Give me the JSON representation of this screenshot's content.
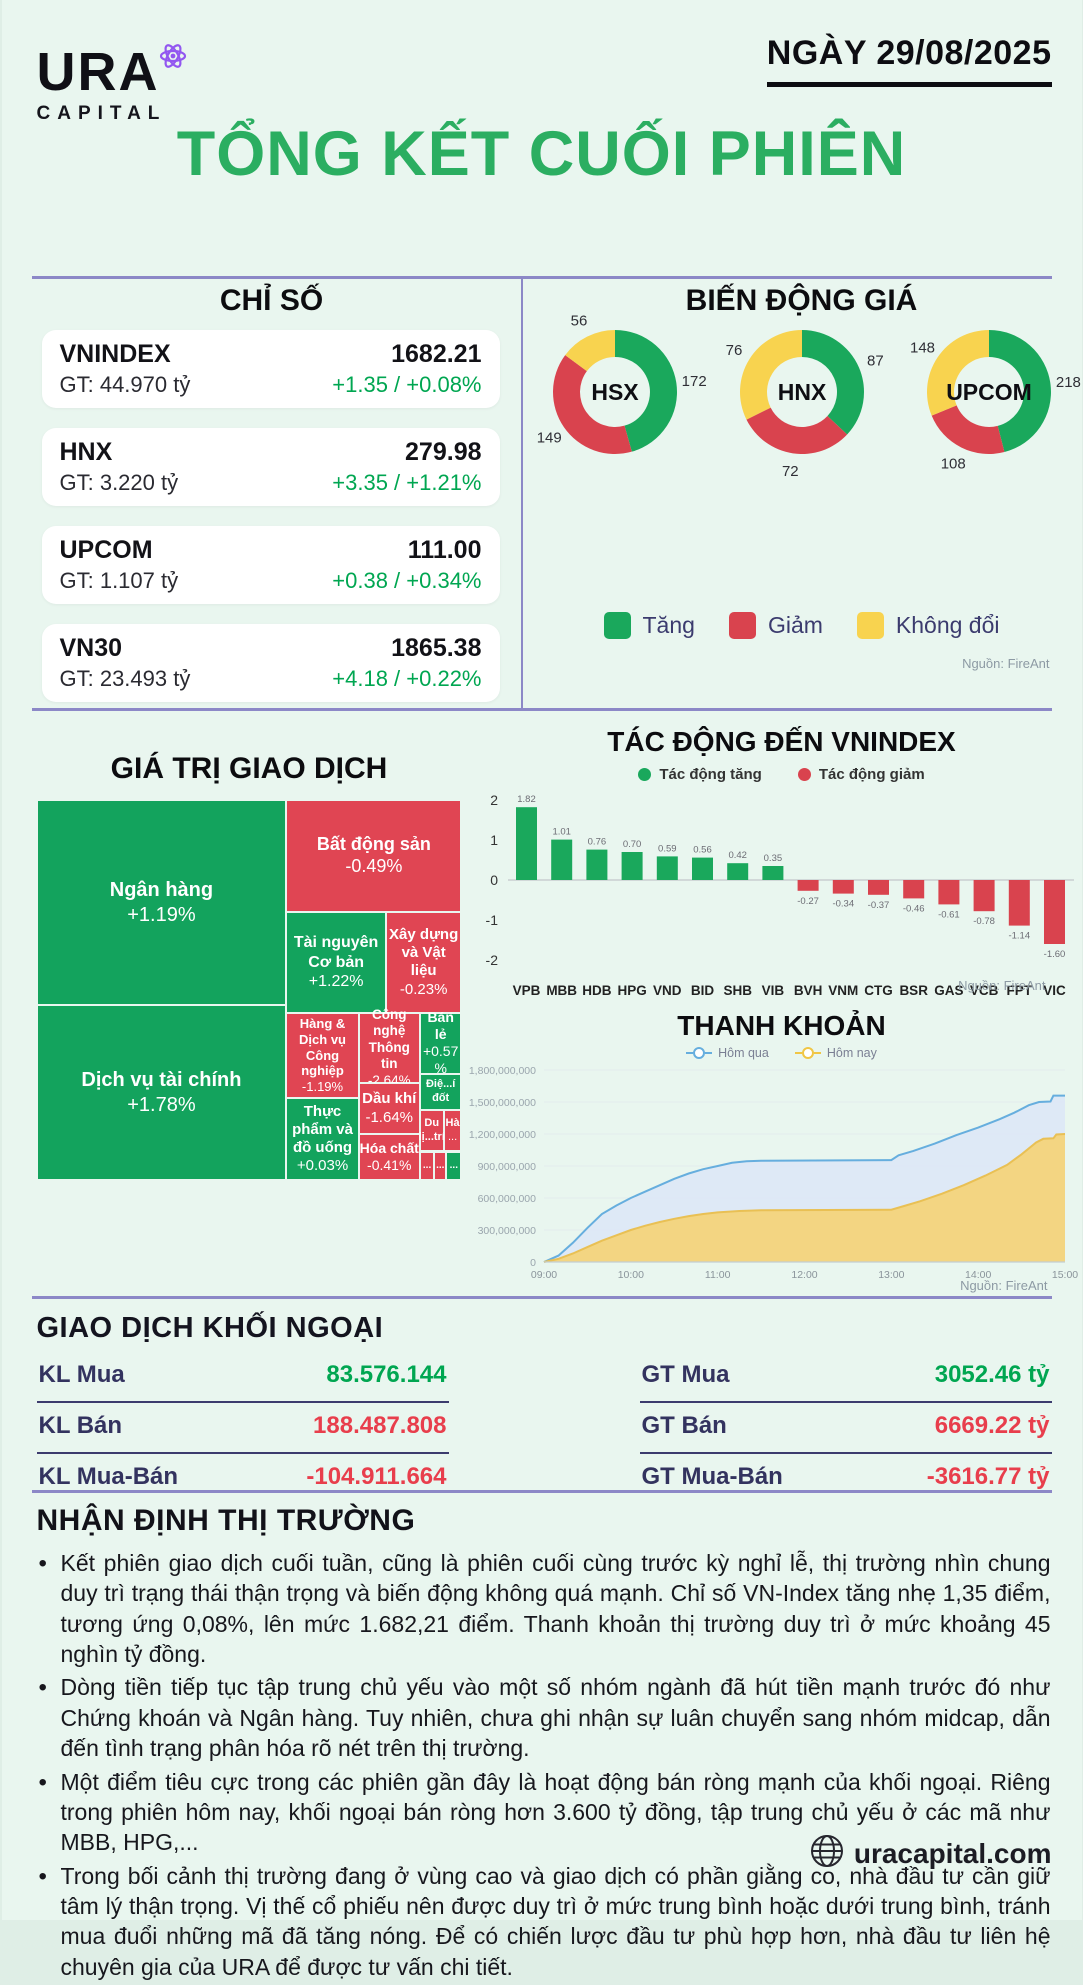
{
  "header": {
    "brand": "URA",
    "brand_sub": "CAPITAL",
    "date": "NGÀY 29/08/2025"
  },
  "main_title": "TỔNG KẾT CUỐI PHIÊN",
  "colors": {
    "up_text": "#00a651",
    "down_text": "#e83e4c",
    "green_fill": "#1aa85c",
    "red_fill": "#d9434e",
    "yellow_fill": "#f8d34f",
    "navy": "#3b3b6e",
    "purple_line": "#8c88c7",
    "blue_line": "#66aede",
    "blue_fill": "#dde8f6",
    "yellow_area": "#f3d47b",
    "background": "#e9f6ef",
    "title_green": "#2bae61"
  },
  "indices": {
    "section_title": "CHỈ SỐ",
    "cards": [
      {
        "name": "VNINDEX",
        "gt": "GT: 44.970 tỷ",
        "value": "1682.21",
        "change": "+1.35 / +0.08%"
      },
      {
        "name": "HNX",
        "gt": "GT: 3.220 tỷ",
        "value": "279.98",
        "change": "+3.35 / +1.21%"
      },
      {
        "name": "UPCOM",
        "gt": "GT: 1.107 tỷ",
        "value": "111.00",
        "change": "+0.38 / +0.34%"
      },
      {
        "name": "VN30",
        "gt": "GT: 23.493 tỷ",
        "value": "1865.38",
        "change": "+4.18 / +0.22%"
      }
    ]
  },
  "price_movement": {
    "section_title": "BIẾN ĐỘNG GIÁ",
    "legend": [
      {
        "label": "Tăng",
        "color": "#1aa85c"
      },
      {
        "label": "Giảm",
        "color": "#d9434e"
      },
      {
        "label": "Không đổi",
        "color": "#f8d34f"
      }
    ],
    "source": "Nguồn: FireAnt"
  },
  "trade_value": {
    "section_title": "GIÁ TRỊ GIAO DỊCH"
  },
  "impact": {
    "section_title": "TÁC ĐỘNG ĐẾN VNINDEX",
    "legend": [
      {
        "label": "Tác động tăng",
        "color": "#1aa85c"
      },
      {
        "label": "Tác động giảm",
        "color": "#d9434e"
      }
    ],
    "source": "Nguồn: FireAnt"
  },
  "liquidity": {
    "section_title": "THANH KHOẢN",
    "legend": [
      {
        "label": "Hôm qua",
        "color": "#66aede"
      },
      {
        "label": "Hôm nay",
        "color": "#f0c645"
      }
    ],
    "source": "Nguồn: FireAnt"
  },
  "foreign": {
    "section_title": "GIAO DỊCH KHỐI NGOẠI",
    "left_rows": [
      {
        "label": "KL Mua",
        "value": "83.576.144",
        "dir": "up"
      },
      {
        "label": "KL Bán",
        "value": "188.487.808",
        "dir": "down"
      },
      {
        "label": "KL Mua-Bán",
        "value": "-104.911.664",
        "dir": "down"
      }
    ],
    "right_rows": [
      {
        "label": "GT Mua",
        "value": "3052.46 tỷ",
        "dir": "up"
      },
      {
        "label": "GT Bán",
        "value": "6669.22 tỷ",
        "dir": "down"
      },
      {
        "label": "GT Mua-Bán",
        "value": "-3616.77 tỷ",
        "dir": "down"
      }
    ]
  },
  "commentary": {
    "section_title": "NHẬN ĐỊNH THỊ TRƯỜNG",
    "bullets": [
      "Kết phiên giao dịch cuối tuần, cũng là phiên cuối cùng trước kỳ nghỉ lễ, thị trường nhìn chung duy trì trạng thái thận trọng và biến động không quá mạnh. Chỉ số VN-Index tăng nhẹ 1,35 điểm, tương ứng 0,08%, lên mức 1.682,21 điểm. Thanh khoản thị trường duy trì ở mức khoảng 45 nghìn tỷ đồng.",
      "Dòng tiền tiếp tục tập trung chủ yếu vào một số nhóm ngành đã hút tiền mạnh trước đó như Chứng khoán và Ngân hàng. Tuy nhiên, chưa ghi nhận sự luân chuyển sang nhóm midcap, dẫn đến tình trạng phân hóa rõ nét trên thị trường.",
      "Một điểm tiêu cực trong các phiên gần đây là hoạt động bán ròng mạnh của khối ngoại. Riêng trong phiên hôm nay, khối ngoại bán ròng hơn 3.600 tỷ đồng, tập trung chủ yếu ở các mã như MBB, HPG,...",
      "Trong bối cảnh thị trường đang ở vùng cao và giao dịch có phần giằng co, nhà đầu tư cần giữ tâm lý thận trọng. Vị thế cổ phiếu nên được duy trì ở mức trung bình hoặc dưới trung bình, tránh mua đuổi những mã đã tăng nóng. Để có chiến lược đầu tư phù hợp hơn, nhà đầu tư liên hệ chuyên gia của URA để được tư vấn chi tiết."
    ]
  },
  "footer": {
    "site": "uracapital.com"
  },
  "chart_data": [
    {
      "type": "pie",
      "name": "HSX",
      "labels": [
        "Tăng",
        "Giảm",
        "Không đổi"
      ],
      "values": [
        172,
        149,
        56
      ],
      "colors": [
        "#1aa85c",
        "#d9434e",
        "#f8d34f"
      ],
      "hole": 0.56
    },
    {
      "type": "pie",
      "name": "HNX",
      "labels": [
        "Tăng",
        "Giảm",
        "Không đổi"
      ],
      "values": [
        87,
        72,
        76
      ],
      "colors": [
        "#1aa85c",
        "#d9434e",
        "#f8d34f"
      ],
      "hole": 0.56
    },
    {
      "type": "pie",
      "name": "UPCOM",
      "labels": [
        "Tăng",
        "Giảm",
        "Không đổi"
      ],
      "values": [
        218,
        108,
        148
      ],
      "colors": [
        "#1aa85c",
        "#d9434e",
        "#f8d34f"
      ],
      "hole": 0.56
    },
    {
      "type": "heatmap",
      "subtype": "treemap",
      "title": "GIÁ TRỊ GIAO DỊCH",
      "cells": [
        {
          "label": "Ngân hàng",
          "change": "+1.19%",
          "dir": "up",
          "x": 0,
          "y": 0,
          "w": 58.8,
          "h": 54,
          "fs": 20
        },
        {
          "label": "Dịch vụ tài chính",
          "change": "+1.78%",
          "dir": "up",
          "x": 0,
          "y": 54,
          "w": 58.8,
          "h": 46,
          "fs": 20
        },
        {
          "label": "Bất động sản",
          "change": "-0.49%",
          "dir": "down",
          "x": 58.8,
          "y": 0,
          "w": 41.2,
          "h": 29.5,
          "fs": 18
        },
        {
          "label": "Tài nguyên Cơ bản",
          "change": "+1.22%",
          "dir": "up",
          "x": 58.8,
          "y": 29.5,
          "w": 23.4,
          "h": 26.5,
          "fs": 16
        },
        {
          "label": "Xây dựng và Vật liệu",
          "change": "-0.23%",
          "dir": "down",
          "x": 82.2,
          "y": 29.5,
          "w": 17.8,
          "h": 26.5,
          "fs": 15
        },
        {
          "label": "Hàng & Dịch vụ Công nghiệp",
          "change": "-1.19%",
          "dir": "down",
          "x": 58.8,
          "y": 56,
          "w": 17,
          "h": 22.5,
          "fs": 13
        },
        {
          "label": "Thực phẩm và đồ uống",
          "change": "+0.03%",
          "dir": "up",
          "x": 58.8,
          "y": 78.5,
          "w": 17,
          "h": 21.5,
          "fs": 15
        },
        {
          "label": "Công nghệ Thông tin",
          "change": "-2.64%",
          "dir": "down",
          "x": 75.8,
          "y": 56,
          "w": 14.4,
          "h": 18.5,
          "fs": 13.5
        },
        {
          "label": "Dầu khí",
          "change": "-1.64%",
          "dir": "down",
          "x": 75.8,
          "y": 74.5,
          "w": 14.4,
          "h": 13.5,
          "fs": 15
        },
        {
          "label": "Hóa chất",
          "change": "-0.41%",
          "dir": "down",
          "x": 75.8,
          "y": 88,
          "w": 14.4,
          "h": 12,
          "fs": 14
        },
        {
          "label": "Bán lẻ",
          "change": "+0.57 %",
          "dir": "up",
          "x": 90.2,
          "y": 56,
          "w": 9.8,
          "h": 16,
          "fs": 14
        },
        {
          "label": "Điệ...í đốt",
          "change": "",
          "dir": "up",
          "x": 90.2,
          "y": 72,
          "w": 9.8,
          "h": 9.5,
          "fs": 11
        },
        {
          "label": "Du lị...trí",
          "change": "",
          "dir": "down",
          "x": 90.2,
          "y": 81.5,
          "w": 5.6,
          "h": 11,
          "fs": 11
        },
        {
          "label": "Hà",
          "change": "...",
          "dir": "down",
          "x": 95.8,
          "y": 81.5,
          "w": 4.2,
          "h": 11,
          "fs": 11
        },
        {
          "label": "...",
          "change": "",
          "dir": "down",
          "x": 90.2,
          "y": 92.5,
          "w": 3.4,
          "h": 7.5,
          "fs": 10
        },
        {
          "label": "...",
          "change": "",
          "dir": "down",
          "x": 93.6,
          "y": 92.5,
          "w": 2.8,
          "h": 7.5,
          "fs": 10
        },
        {
          "label": "...",
          "change": "",
          "dir": "up",
          "x": 96.4,
          "y": 92.5,
          "w": 3.6,
          "h": 7.5,
          "fs": 10
        }
      ]
    },
    {
      "type": "bar",
      "title": "TÁC ĐỘNG ĐẾN VNINDEX",
      "categories": [
        "VPB",
        "MBB",
        "HDB",
        "HPG",
        "VND",
        "BID",
        "SHB",
        "VIB",
        "BVH",
        "VNM",
        "CTG",
        "BSR",
        "GAS",
        "VCB",
        "FPT",
        "VIC"
      ],
      "values": [
        1.82,
        1.01,
        0.76,
        0.7,
        0.59,
        0.56,
        0.42,
        0.35,
        -0.27,
        -0.34,
        -0.37,
        -0.46,
        -0.61,
        -0.78,
        -1.14,
        -1.6
      ],
      "value_labels": [
        "1.82",
        "1.01",
        "0.76",
        "0.70",
        "0.59",
        "0.56",
        "0.42",
        "0.35",
        "-0.27",
        "-0.34",
        "-0.37",
        "-0.46",
        "-0.61",
        "-0.78",
        "-1.14",
        "-1.60"
      ],
      "yticks": [
        2,
        1,
        0,
        -1,
        -2
      ],
      "ylim": [
        -2,
        2
      ],
      "legend_position": "top",
      "grid": "zero-line-only"
    },
    {
      "type": "area",
      "title": "THANH KHOẢN",
      "ytick_labels": [
        "1,800,000,000",
        "1,500,000,000",
        "1,200,000,000",
        "900,000,000",
        "600,000,000",
        "300,000,000",
        "0"
      ],
      "ymax_millions": 1800,
      "xtick_labels": [
        "09:00",
        "10:00",
        "11:00",
        "12:00",
        "13:00",
        "14:00",
        "15:00"
      ],
      "series": [
        {
          "name": "Hôm qua",
          "color": "#66aede",
          "fill": "#dde8f6",
          "points": [
            [
              0,
              0
            ],
            [
              10,
              60
            ],
            [
              20,
              180
            ],
            [
              30,
              320
            ],
            [
              40,
              450
            ],
            [
              50,
              530
            ],
            [
              60,
              600
            ],
            [
              70,
              660
            ],
            [
              80,
              720
            ],
            [
              90,
              780
            ],
            [
              100,
              830
            ],
            [
              110,
              870
            ],
            [
              120,
              900
            ],
            [
              130,
              930
            ],
            [
              140,
              945
            ],
            [
              150,
              950
            ],
            [
              240,
              955
            ],
            [
              245,
              1000
            ],
            [
              255,
              1040
            ],
            [
              270,
              1110
            ],
            [
              285,
              1190
            ],
            [
              300,
              1260
            ],
            [
              315,
              1340
            ],
            [
              325,
              1400
            ],
            [
              335,
              1470
            ],
            [
              342,
              1500
            ],
            [
              350,
              1505
            ],
            [
              352,
              1560
            ],
            [
              360,
              1560
            ]
          ]
        },
        {
          "name": "Hôm nay",
          "color": "#e9c054",
          "fill": "#f3d47b",
          "points": [
            [
              0,
              0
            ],
            [
              10,
              30
            ],
            [
              20,
              80
            ],
            [
              30,
              140
            ],
            [
              40,
              200
            ],
            [
              50,
              250
            ],
            [
              60,
              300
            ],
            [
              70,
              340
            ],
            [
              80,
              375
            ],
            [
              90,
              405
            ],
            [
              100,
              430
            ],
            [
              110,
              450
            ],
            [
              120,
              465
            ],
            [
              135,
              478
            ],
            [
              150,
              485
            ],
            [
              240,
              490
            ],
            [
              250,
              530
            ],
            [
              260,
              570
            ],
            [
              275,
              640
            ],
            [
              290,
              720
            ],
            [
              305,
              810
            ],
            [
              320,
              910
            ],
            [
              330,
              1010
            ],
            [
              340,
              1120
            ],
            [
              345,
              1155
            ],
            [
              352,
              1160
            ],
            [
              354,
              1195
            ],
            [
              360,
              1200
            ]
          ]
        }
      ]
    }
  ]
}
